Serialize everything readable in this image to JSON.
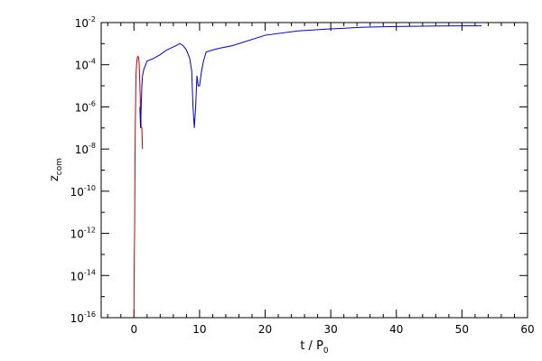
{
  "chart_data": {
    "type": "line",
    "title": "",
    "xlabel": "t / P",
    "xlabel_sub": "0",
    "ylabel": "z",
    "ylabel_sub": "com",
    "xlim": [
      -5,
      60
    ],
    "ylim": [
      1e-16,
      0.01
    ],
    "yscale": "log",
    "grid": false,
    "x_ticks": [
      0,
      10,
      20,
      30,
      40,
      50,
      60
    ],
    "x_tick_labels": [
      "0",
      "10",
      "20",
      "30",
      "40",
      "50",
      "60"
    ],
    "y_ticks": [
      1e-16,
      1e-14,
      1e-12,
      1e-10,
      1e-08,
      1e-06,
      0.0001,
      0.01
    ],
    "y_tick_labels": [
      {
        "base": "10",
        "exp": "-16"
      },
      {
        "base": "10",
        "exp": "-14"
      },
      {
        "base": "10",
        "exp": "-12"
      },
      {
        "base": "10",
        "exp": "-10"
      },
      {
        "base": "10",
        "exp": "-8"
      },
      {
        "base": "10",
        "exp": "-6"
      },
      {
        "base": "10",
        "exp": "-4"
      },
      {
        "base": "10",
        "exp": "-2"
      }
    ],
    "series": [
      {
        "color": "#cc0000",
        "x": [
          0.0,
          0.0,
          0.05,
          0.1,
          0.15,
          0.2,
          0.3,
          0.4,
          0.5,
          0.6,
          0.7,
          0.8,
          0.9,
          1.0,
          1.1,
          1.2,
          1.3
        ],
        "y": [
          1e-16,
          1e-15,
          1e-13,
          1e-12,
          1e-09,
          1e-07,
          3e-05,
          0.0001,
          0.00022,
          0.00025,
          0.00022,
          0.0001,
          1e-05,
          1e-06,
          1e-07,
          1e-07,
          1e-08
        ]
      },
      {
        "color": "#0000cc",
        "x": [
          0.9,
          1.0,
          1.1,
          1.2,
          1.3,
          1.5,
          2,
          3,
          4,
          5,
          6,
          7,
          7.5,
          8,
          8.5,
          8.8,
          9.0,
          9.2,
          9.4,
          9.6,
          9.8,
          10.0,
          10.3,
          10.6,
          11,
          12,
          13,
          15,
          20,
          25,
          30,
          35,
          40,
          45,
          50,
          53
        ],
        "y": [
          1e-06,
          1e-07,
          1e-06,
          1e-05,
          3e-05,
          6e-05,
          0.00015,
          0.0002,
          0.0003,
          0.0005,
          0.0007,
          0.001,
          0.0008,
          0.0005,
          0.0002,
          5e-05,
          1e-06,
          1e-07,
          1e-06,
          3e-05,
          1e-05,
          1e-05,
          5e-05,
          0.00015,
          0.0004,
          0.0005,
          0.0006,
          0.0008,
          0.0025,
          0.004,
          0.005,
          0.006,
          0.0065,
          0.0068,
          0.007,
          0.007
        ]
      }
    ]
  }
}
